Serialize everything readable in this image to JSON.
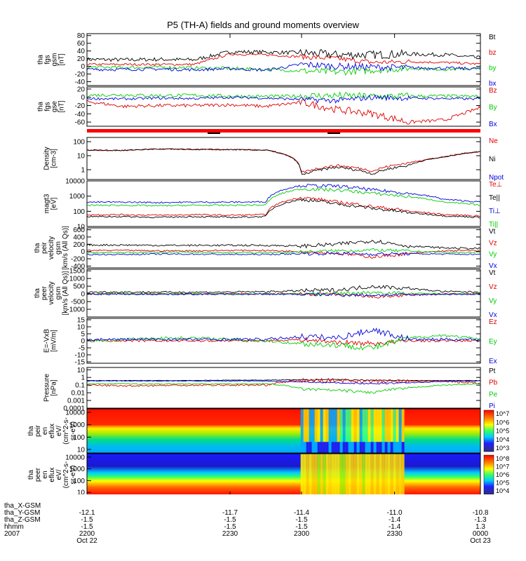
{
  "title": "P5 (TH-A) fields and ground moments overview",
  "chart_data": [
    {
      "type": "line",
      "ylabel": [
        "tha",
        "fgs",
        "gsm",
        "[nT]"
      ],
      "yticks": [
        80,
        60,
        40,
        20,
        0,
        -20,
        -40
      ],
      "ylim": [
        -50,
        85
      ],
      "series": [
        {
          "name": "Bt",
          "color": "#000000",
          "base": [
            18,
            17,
            18,
            17,
            38,
            37,
            35,
            30,
            30,
            32,
            30,
            22
          ],
          "noise": 5
        },
        {
          "name": "bz",
          "color": "#dd0000",
          "base": [
            5,
            5,
            5,
            5,
            32,
            30,
            25,
            20,
            10,
            12,
            10,
            6
          ],
          "noise": 3
        },
        {
          "name": "by",
          "color": "#00cc00",
          "base": [
            -2,
            -3,
            -2,
            -4,
            -5,
            -8,
            -12,
            -15,
            -10,
            -5,
            -8,
            -6
          ],
          "noise": 4
        },
        {
          "name": "bx",
          "color": "#0000dd",
          "base": [
            -8,
            -8,
            -7,
            -9,
            -6,
            -10,
            5,
            0,
            -2,
            -4,
            -5,
            -6
          ],
          "noise": 4
        }
      ]
    },
    {
      "type": "line",
      "ylabel": [
        "tha",
        "fgs",
        "gse",
        "[nT]"
      ],
      "yticks": [
        20,
        0,
        -20,
        -40,
        -60
      ],
      "ylim": [
        -70,
        25
      ],
      "series": [
        {
          "name": "Bz",
          "color": "#dd0000",
          "base": [
            -10,
            -22,
            -20,
            -20,
            -18,
            -22,
            -12,
            -30,
            -40,
            -60,
            -55,
            -25
          ],
          "noise": 4
        },
        {
          "name": "By",
          "color": "#00cc00",
          "base": [
            5,
            6,
            4,
            5,
            3,
            2,
            3,
            4,
            2,
            3,
            3,
            2
          ],
          "noise": 4
        },
        {
          "name": "Bx",
          "color": "#0000dd",
          "base": [
            -3,
            -4,
            -2,
            -3,
            0,
            -2,
            -5,
            -8,
            0,
            -2,
            -3,
            -4
          ],
          "noise": 3
        }
      ]
    },
    {
      "type": "area",
      "name": "mode bar"
    },
    {
      "type": "line",
      "log": true,
      "ylabel": [
        "Density",
        "[cm-3]"
      ],
      "yticks": [
        100,
        10,
        1
      ],
      "ylim": [
        0.2,
        200
      ],
      "series": [
        {
          "name": "Ne",
          "color": "#dd0000",
          "base": [
            25,
            24,
            30,
            28,
            27,
            25,
            0.6,
            2,
            0.8,
            3,
            8,
            20
          ],
          "noise": 0.04
        },
        {
          "name": "Ni",
          "color": "#000000",
          "base": [
            25,
            24,
            30,
            28,
            27,
            25,
            0.4,
            1.5,
            0.5,
            2,
            8,
            20
          ],
          "noise": 0.04
        },
        {
          "name": "Npot",
          "color": "#0000dd",
          "base": [],
          "noise": 0
        }
      ]
    },
    {
      "type": "line",
      "log": true,
      "ylabel": [
        "magt3",
        "[eV]"
      ],
      "yticks": [
        10000,
        1000,
        100,
        10
      ],
      "ylim": [
        10,
        10000
      ],
      "series": [
        {
          "name": "Te⊥",
          "color": "#dd0000",
          "base": [
            60,
            60,
            55,
            60,
            55,
            60,
            800,
            400,
            200,
            100,
            60,
            50
          ],
          "noise": 0.05
        },
        {
          "name": "Te||",
          "color": "#000000",
          "base": [
            45,
            45,
            40,
            45,
            40,
            45,
            600,
            300,
            150,
            80,
            50,
            40
          ],
          "noise": 0.05
        },
        {
          "name": "Ti⊥",
          "color": "#0000dd",
          "base": [
            400,
            400,
            380,
            400,
            400,
            420,
            5000,
            4500,
            2500,
            1500,
            600,
            400
          ],
          "noise": 0.05
        },
        {
          "name": "Ti||",
          "color": "#00cc00",
          "base": [
            250,
            250,
            230,
            250,
            250,
            260,
            3000,
            2500,
            1500,
            900,
            400,
            250
          ],
          "noise": 0.05
        }
      ]
    },
    {
      "type": "line",
      "ylabel": [
        "tha",
        "peir",
        "velocity",
        "gsm",
        "[km/s (All Qs)]"
      ],
      "yticks": [
        600,
        400,
        200,
        0,
        -200,
        -400
      ],
      "ylim": [
        -450,
        650
      ],
      "series": [
        {
          "name": "Vt",
          "color": "#000000",
          "base": [
            180,
            180,
            170,
            170,
            170,
            170,
            150,
            200,
            300,
            150,
            100,
            80
          ],
          "noise": 25
        },
        {
          "name": "Vz",
          "color": "#dd0000",
          "base": [
            30,
            30,
            20,
            20,
            30,
            30,
            0,
            -50,
            -150,
            -60,
            20,
            30
          ],
          "noise": 20
        },
        {
          "name": "Vy",
          "color": "#00cc00",
          "base": [
            -30,
            -30,
            -20,
            -20,
            -30,
            -30,
            -10,
            20,
            40,
            10,
            -20,
            -30
          ],
          "noise": 20
        },
        {
          "name": "Vx",
          "color": "#0000dd",
          "base": [
            -80,
            -80,
            -70,
            -70,
            -80,
            -80,
            -60,
            -50,
            -70,
            -60,
            -70,
            -80
          ],
          "noise": 20
        }
      ]
    },
    {
      "type": "line",
      "ylabel": [
        "tha",
        "peer",
        "velocity",
        "gsm",
        "[km/s (All Qs)]"
      ],
      "yticks": [
        1500,
        1000,
        500,
        0,
        -500,
        -1000
      ],
      "ylim": [
        -1500,
        1600
      ],
      "series": [
        {
          "name": "Vt",
          "color": "#000000",
          "base": [
            120,
            120,
            110,
            110,
            120,
            140,
            200,
            250,
            500,
            350,
            150,
            120
          ],
          "noise": 60
        },
        {
          "name": "Vz",
          "color": "#dd0000",
          "base": [
            0,
            0,
            0,
            0,
            0,
            0,
            0,
            -50,
            -200,
            -100,
            0,
            0
          ],
          "noise": 50
        },
        {
          "name": "Vy",
          "color": "#00cc00",
          "base": [
            0,
            0,
            0,
            0,
            0,
            0,
            0,
            20,
            100,
            30,
            0,
            0
          ],
          "noise": 50
        },
        {
          "name": "Vx",
          "color": "#0000dd",
          "base": [
            -20,
            -20,
            -20,
            -20,
            -20,
            -20,
            -30,
            -50,
            -80,
            -50,
            -20,
            -20
          ],
          "noise": 50
        }
      ]
    },
    {
      "type": "line",
      "ylabel": [
        "E=-VxB",
        "[mV/m]"
      ],
      "yticks": [
        15,
        10,
        5,
        0,
        -5,
        -10,
        -15
      ],
      "ylim": [
        -16,
        16
      ],
      "series": [
        {
          "name": "Ez",
          "color": "#dd0000",
          "base": [
            0,
            0,
            0,
            0,
            0,
            0,
            1,
            -1,
            -2,
            0,
            0,
            0
          ],
          "noise": 0.8
        },
        {
          "name": "Ey",
          "color": "#00cc00",
          "base": [
            0,
            1,
            2,
            2,
            1,
            0,
            -2,
            -3,
            -5,
            2,
            4,
            1
          ],
          "noise": 1
        },
        {
          "name": "Ex",
          "color": "#0000dd",
          "base": [
            1,
            1,
            1,
            1,
            1,
            1,
            3,
            2,
            8,
            1,
            1,
            1
          ],
          "noise": 1
        }
      ]
    },
    {
      "type": "line",
      "log": true,
      "ylabel": [
        "Pressure",
        "[nPa]"
      ],
      "yticks": [
        10,
        1,
        0.1,
        0.01,
        0.001,
        0.0001
      ],
      "ylim": [
        0.0001,
        20
      ],
      "series": [
        {
          "name": "Pt",
          "color": "#000000",
          "base": [
            0.4,
            0.4,
            0.4,
            0.4,
            0.45,
            0.45,
            0.5,
            0.5,
            0.45,
            0.4,
            0.4,
            0.4
          ],
          "noise": 0.03
        },
        {
          "name": "Pb",
          "color": "#dd0000",
          "base": [
            0.1,
            0.08,
            0.09,
            0.1,
            0.1,
            0.1,
            0.4,
            0.4,
            0.3,
            0.3,
            0.3,
            0.2
          ],
          "noise": 0.12
        },
        {
          "name": "Pe",
          "color": "#00cc00",
          "base": [
            0.15,
            0.15,
            0.14,
            0.15,
            0.14,
            0.15,
            0.03,
            0.02,
            0.01,
            0.04,
            0.1,
            0.15
          ],
          "noise": 0.08
        },
        {
          "name": "Pi",
          "color": "#0000dd",
          "base": [
            0.35,
            0.35,
            0.34,
            0.35,
            0.35,
            0.35,
            0.25,
            0.2,
            0.15,
            0.2,
            0.3,
            0.35
          ],
          "noise": 0.04
        }
      ]
    },
    {
      "type": "heatmap",
      "ylabel": [
        "tha",
        "peir",
        "en",
        "eflux",
        "eV/",
        "(cm^2-s-",
        "sr-eV)"
      ],
      "yticks": [
        10000,
        1000,
        100,
        10
      ],
      "colorbar": [
        "10^7",
        "10^6",
        "10^5",
        "10^4",
        "10^3"
      ]
    },
    {
      "type": "heatmap",
      "ylabel": [
        "tha",
        "peer",
        "en",
        "eflux",
        "eV/",
        "(cm^2-s-",
        "sr-eV)"
      ],
      "yticks": [
        10000,
        1000,
        100,
        10
      ],
      "colorbar": [
        "10^8",
        "10^7",
        "10^6",
        "10^5",
        "10^4"
      ]
    }
  ],
  "x_axis": {
    "ticks": [
      "5.5",
      "5.7",
      "5.8",
      "5.9",
      "6.0"
    ],
    "rows": [
      {
        "label": "tha_X-GSM",
        "values": [
          "-12.1",
          "-11.7",
          "-11.4",
          "-11.0",
          "-10.8"
        ]
      },
      {
        "label": "tha_Y-GSM",
        "values": [
          "-1.5",
          "-1.5",
          "-1.5",
          "-1.4",
          "-1.3"
        ]
      },
      {
        "label": "tha_Z-GSM",
        "values": [
          "-1.5",
          "-1.5",
          "-1.5",
          "-1.4",
          "1.3"
        ]
      },
      {
        "label": "hhmm",
        "values": [
          "2200",
          "2230",
          "2300",
          "2330",
          "0000"
        ]
      },
      {
        "label": "2007",
        "values": [
          "Oct 22",
          "",
          "",
          "",
          "Oct 23"
        ]
      }
    ]
  }
}
